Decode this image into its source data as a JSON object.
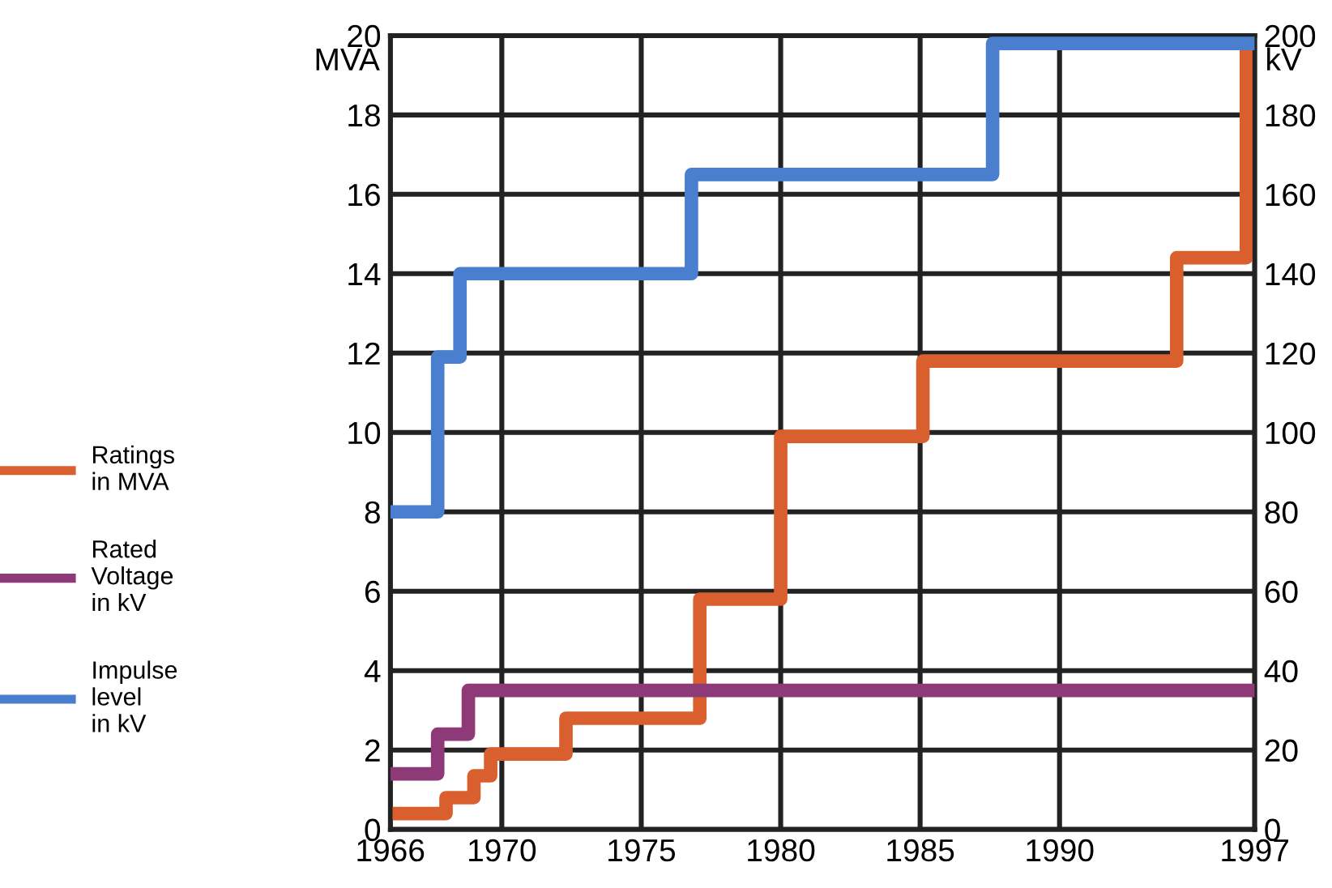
{
  "chart_data": {
    "type": "step",
    "ylabel": "MVA",
    "y2label": "kV",
    "xlim": [
      1966,
      1997
    ],
    "xticks": [
      1966,
      1970,
      1975,
      1980,
      1985,
      1990,
      1997
    ],
    "ylim": [
      0,
      20
    ],
    "yticks": [
      0,
      2,
      4,
      6,
      8,
      10,
      12,
      14,
      16,
      18,
      20
    ],
    "y2lim": [
      0,
      200
    ],
    "y2ticks": [
      0,
      20,
      40,
      60,
      80,
      100,
      120,
      140,
      160,
      180,
      200
    ],
    "grid": true,
    "legend": "left",
    "series": [
      {
        "name": "Ratings\nin MVA",
        "color": "#d9602e",
        "x": [
          1966,
          1968.0,
          1969.0,
          1969.6,
          1972.3,
          1977.1,
          1980,
          1985.1,
          1994.2,
          1996.7,
          1997
        ],
        "values": [
          0.4,
          0.8,
          1.35,
          1.9,
          2.8,
          5.8,
          9.9,
          11.8,
          14.4,
          19.7,
          19.7
        ]
      },
      {
        "name": "Rated\nVoltage\nin kV",
        "color": "#8e3a78",
        "axis": "y2",
        "x": [
          1966,
          1967.7,
          1968.8,
          1997
        ],
        "values": [
          14,
          24,
          35,
          35
        ]
      },
      {
        "name": "Impulse\nlevel\nin kV",
        "color": "#4a7fd0",
        "axis": "y2",
        "x": [
          1966,
          1967.7,
          1968.5,
          1976.8,
          1987.6,
          1997
        ],
        "values": [
          80,
          119,
          140,
          165,
          198,
          198
        ]
      }
    ]
  }
}
